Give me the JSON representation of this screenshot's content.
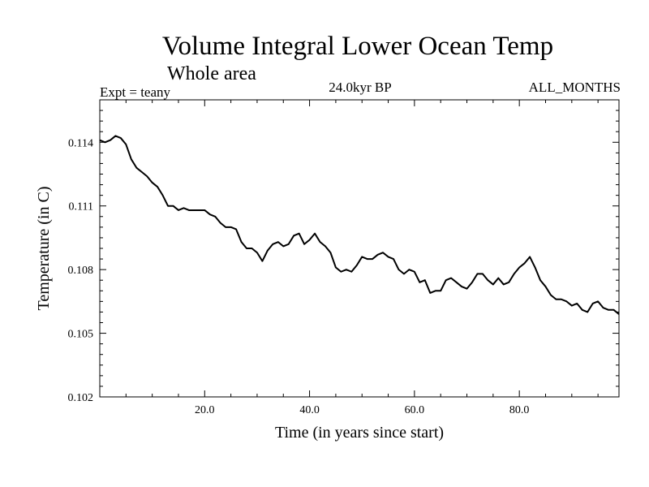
{
  "chart_data": {
    "type": "line",
    "title": "Volume Integral Lower Ocean Temp",
    "subtitle": "Whole area",
    "header_left": "Expt = teany",
    "header_center": "24.0kyr BP",
    "header_right": "ALL_MONTHS",
    "xlabel": "Time (in years since start)",
    "ylabel": "Temperature (in C)",
    "xlim": [
      0,
      99
    ],
    "ylim": [
      0.102,
      0.116
    ],
    "x_ticks": [
      20,
      40,
      60,
      80
    ],
    "x_tick_labels": [
      "20.0",
      "40.0",
      "60.0",
      "80.0"
    ],
    "y_ticks": [
      0.102,
      0.105,
      0.108,
      0.111,
      0.114
    ],
    "y_tick_labels": [
      "0.102",
      "0.105",
      "0.108",
      "0.111",
      "0.114"
    ],
    "series": [
      {
        "name": "Temperature",
        "x": [
          0,
          1,
          2,
          3,
          4,
          5,
          6,
          7,
          8,
          9,
          10,
          11,
          12,
          13,
          14,
          15,
          16,
          17,
          18,
          19,
          20,
          21,
          22,
          23,
          24,
          25,
          26,
          27,
          28,
          29,
          30,
          31,
          32,
          33,
          34,
          35,
          36,
          37,
          38,
          39,
          40,
          41,
          42,
          43,
          44,
          45,
          46,
          47,
          48,
          49,
          50,
          51,
          52,
          53,
          54,
          55,
          56,
          57,
          58,
          59,
          60,
          61,
          62,
          63,
          64,
          65,
          66,
          67,
          68,
          69,
          70,
          71,
          72,
          73,
          74,
          75,
          76,
          77,
          78,
          79,
          80,
          81,
          82,
          83,
          84,
          85,
          86,
          87,
          88,
          89,
          90,
          91,
          92,
          93,
          94,
          95,
          96,
          97,
          98,
          99
        ],
        "values": [
          0.1141,
          0.114,
          0.1141,
          0.1143,
          0.1142,
          0.1139,
          0.1132,
          0.1128,
          0.1126,
          0.1124,
          0.1121,
          0.1119,
          0.1115,
          0.111,
          0.111,
          0.1108,
          0.1109,
          0.1108,
          0.1108,
          0.1108,
          0.1108,
          0.1106,
          0.1105,
          0.1102,
          0.11,
          0.11,
          0.1099,
          0.1093,
          0.109,
          0.109,
          0.1088,
          0.1084,
          0.1089,
          0.1092,
          0.1093,
          0.1091,
          0.1092,
          0.1096,
          0.1097,
          0.1092,
          0.1094,
          0.1097,
          0.1093,
          0.1091,
          0.1088,
          0.1081,
          0.1079,
          0.108,
          0.1079,
          0.1082,
          0.1086,
          0.1085,
          0.1085,
          0.1087,
          0.1088,
          0.1086,
          0.1085,
          0.108,
          0.1078,
          0.108,
          0.1079,
          0.1074,
          0.1075,
          0.1069,
          0.107,
          0.107,
          0.1075,
          0.1076,
          0.1074,
          0.1072,
          0.1071,
          0.1074,
          0.1078,
          0.1078,
          0.1075,
          0.1073,
          0.1076,
          0.1073,
          0.1074,
          0.1078,
          0.1081,
          0.1083,
          0.1086,
          0.1081,
          0.1075,
          0.1072,
          0.1068,
          0.1066,
          0.1066,
          0.1065,
          0.1063,
          0.1064,
          0.1061,
          0.106,
          0.1064,
          0.1065,
          0.1062,
          0.1061,
          0.1061,
          0.1059
        ]
      }
    ],
    "colors": {
      "line": "#000000",
      "axes": "#000000",
      "background": "#ffffff"
    }
  }
}
